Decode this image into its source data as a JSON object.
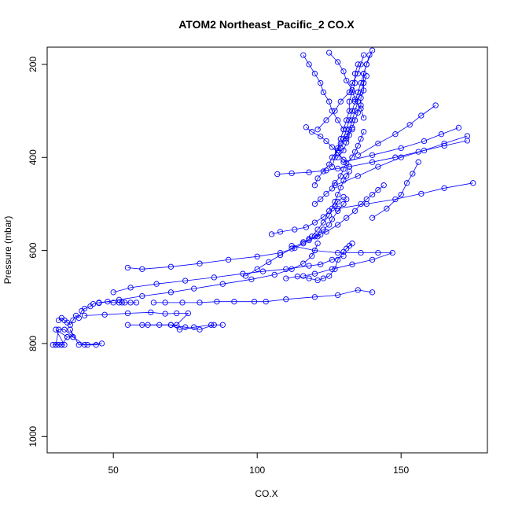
{
  "chart_data": {
    "type": "line",
    "title": "ATOM2 Northeast_Pacific_2 CO.X",
    "xlabel": "CO.X",
    "ylabel": "Pressure (mbar)",
    "x_ticks": [
      50,
      100,
      150
    ],
    "y_ticks": [
      200,
      400,
      600,
      800,
      1000
    ],
    "xlim": [
      27,
      180
    ],
    "ylim": [
      1035,
      163
    ],
    "y_reversed": true,
    "grid": false,
    "marker": "open-circle",
    "color": "#0000ff",
    "series": [
      {
        "x": [
          29,
          30,
          31,
          32,
          33,
          30,
          34,
          36,
          35,
          38,
          41,
          44,
          46,
          40,
          36,
          33,
          31,
          30,
          32,
          34
        ],
        "y": [
          803,
          803,
          803,
          803,
          803,
          770,
          786,
          786,
          770,
          803,
          803,
          803,
          800,
          803,
          786,
          770,
          770,
          803,
          803,
          786
        ]
      },
      {
        "x": [
          31,
          32,
          33,
          34,
          35,
          36,
          37,
          38,
          39,
          40,
          42,
          43,
          45,
          48,
          50,
          52,
          53,
          54,
          56,
          58
        ],
        "y": [
          750,
          745,
          750,
          755,
          760,
          750,
          740,
          745,
          730,
          725,
          720,
          715,
          712,
          710,
          712,
          712,
          712,
          712,
          712,
          712
        ]
      },
      {
        "x": [
          40,
          47,
          55,
          63,
          68,
          72,
          76,
          72,
          66,
          60
        ],
        "y": [
          740,
          738,
          735,
          733,
          736,
          735,
          735,
          760,
          760,
          760
        ]
      },
      {
        "x": [
          55,
          62,
          70,
          75,
          80,
          85,
          88,
          84,
          78,
          73,
          70
        ],
        "y": [
          760,
          760,
          760,
          765,
          770,
          760,
          760,
          760,
          765,
          770,
          760
        ]
      },
      {
        "x": [
          64,
          68,
          74,
          80,
          86,
          92,
          99,
          103,
          110,
          120,
          128,
          135,
          140
        ],
        "y": [
          712,
          712,
          712,
          712,
          710,
          710,
          710,
          710,
          705,
          700,
          696,
          685,
          690
        ]
      },
      {
        "x": [
          50,
          56,
          65,
          75,
          85,
          95,
          102,
          110,
          118,
          122,
          126,
          130
        ],
        "y": [
          690,
          680,
          672,
          665,
          658,
          650,
          645,
          640,
          633,
          630,
          620,
          612
        ]
      },
      {
        "x": [
          55,
          60,
          70,
          80,
          90,
          100,
          108,
          113,
          116,
          118,
          121,
          122
        ],
        "y": [
          637,
          640,
          635,
          628,
          620,
          613,
          605,
          595,
          585,
          578,
          570,
          566
        ]
      },
      {
        "x": [
          45,
          52,
          60,
          70,
          78,
          88,
          98,
          106,
          112,
          116,
          119,
          120,
          121
        ],
        "y": [
          713,
          706,
          698,
          690,
          682,
          672,
          662,
          652,
          640,
          628,
          612,
          600,
          585
        ]
      },
      {
        "x": [
          96,
          100,
          104,
          108,
          112,
          116,
          120,
          123,
          125,
          126,
          128,
          130,
          131
        ],
        "y": [
          655,
          640,
          625,
          610,
          596,
          582,
          570,
          555,
          545,
          533,
          515,
          500,
          490
        ]
      },
      {
        "x": [
          110,
          114,
          118,
          121,
          123,
          125,
          127,
          128,
          130,
          131,
          132,
          133
        ],
        "y": [
          660,
          656,
          660,
          664,
          660,
          655,
          640,
          620,
          603,
          596,
          590,
          585
        ]
      },
      {
        "x": [
          112,
          120,
          128,
          136,
          142,
          147,
          140,
          133,
          126,
          120,
          116
        ],
        "y": [
          590,
          600,
          605,
          605,
          605,
          605,
          620,
          630,
          640,
          650,
          655
        ]
      },
      {
        "x": [
          118,
          124,
          128,
          131,
          134,
          136,
          138,
          140,
          142,
          144
        ],
        "y": [
          575,
          560,
          545,
          530,
          515,
          500,
          490,
          480,
          470,
          460
        ]
      },
      {
        "x": [
          105,
          108,
          113,
          117,
          120,
          123,
          125,
          127,
          128,
          130
        ],
        "y": [
          565,
          560,
          555,
          550,
          540,
          528,
          515,
          505,
          495,
          485
        ]
      },
      {
        "x": [
          119,
          121,
          123,
          125,
          126,
          127,
          128,
          129,
          130,
          131,
          132
        ],
        "y": [
          570,
          555,
          540,
          525,
          510,
          495,
          480,
          465,
          450,
          440,
          430
        ]
      },
      {
        "x": [
          120,
          122,
          124,
          126,
          127,
          129,
          130,
          131,
          133,
          134,
          135,
          136,
          137
        ],
        "y": [
          500,
          490,
          478,
          467,
          455,
          440,
          425,
          412,
          400,
          388,
          375,
          360,
          345
        ]
      },
      {
        "x": [
          128,
          130,
          131,
          132,
          133,
          134,
          135,
          136,
          136,
          137,
          137,
          138
        ],
        "y": [
          400,
          385,
          368,
          352,
          336,
          320,
          304,
          288,
          272,
          256,
          240,
          225
        ]
      },
      {
        "x": [
          126,
          127,
          128,
          129,
          130,
          131,
          132,
          132,
          133,
          134,
          134,
          135
        ],
        "y": [
          420,
          400,
          380,
          360,
          340,
          320,
          300,
          280,
          260,
          240,
          220,
          200
        ]
      },
      {
        "x": [
          129,
          130,
          131,
          132,
          133,
          134,
          135,
          136,
          137,
          138,
          139
        ],
        "y": [
          380,
          360,
          340,
          320,
          300,
          280,
          260,
          240,
          220,
          200,
          180
        ]
      },
      {
        "x": [
          131,
          132,
          133,
          134,
          135,
          136,
          137,
          137,
          138,
          140
        ],
        "y": [
          360,
          340,
          320,
          300,
          280,
          260,
          240,
          220,
          200,
          170
        ]
      },
      {
        "x": [
          121,
          124,
          127,
          129,
          132,
          133,
          135,
          136,
          137
        ],
        "y": [
          340,
          320,
          300,
          280,
          260,
          240,
          220,
          200,
          180
        ]
      },
      {
        "x": [
          116,
          118,
          120,
          122,
          123,
          125,
          126,
          128,
          130
        ],
        "y": [
          180,
          200,
          220,
          240,
          260,
          280,
          300,
          320,
          340
        ]
      },
      {
        "x": [
          125,
          128,
          130,
          131,
          133,
          134,
          136,
          137
        ],
        "y": [
          175,
          195,
          215,
          235,
          255,
          275,
          295,
          315
        ]
      },
      {
        "x": [
          117,
          119,
          122,
          124,
          126,
          128,
          130,
          132
        ],
        "y": [
          335,
          345,
          355,
          365,
          378,
          390,
          405,
          420
        ]
      },
      {
        "x": [
          120,
          121,
          123,
          125,
          126,
          128,
          129,
          131,
          133
        ],
        "y": [
          460,
          445,
          430,
          415,
          400,
          385,
          370,
          355,
          340
        ]
      },
      {
        "x": [
          107,
          112,
          118,
          124,
          128,
          132
        ],
        "y": [
          436,
          434,
          432,
          428,
          424,
          420
        ]
      },
      {
        "x": [
          132,
          140,
          148,
          156,
          165,
          173
        ],
        "y": [
          420,
          410,
          400,
          388,
          375,
          364
        ]
      },
      {
        "x": [
          130,
          140,
          150,
          158,
          164,
          170
        ],
        "y": [
          410,
          395,
          380,
          365,
          350,
          336
        ]
      },
      {
        "x": [
          135,
          142,
          148,
          153,
          157,
          162
        ],
        "y": [
          395,
          370,
          350,
          330,
          310,
          288
        ]
      },
      {
        "x": [
          127,
          135,
          142,
          150,
          158,
          165,
          173
        ],
        "y": [
          460,
          440,
          420,
          400,
          385,
          370,
          354
        ]
      },
      {
        "x": [
          128,
          138,
          148,
          157,
          165,
          175
        ],
        "y": [
          510,
          500,
          490,
          478,
          466,
          455
        ]
      },
      {
        "x": [
          140,
          145,
          150,
          152,
          154,
          156
        ],
        "y": [
          530,
          510,
          480,
          455,
          435,
          410
        ]
      }
    ]
  }
}
